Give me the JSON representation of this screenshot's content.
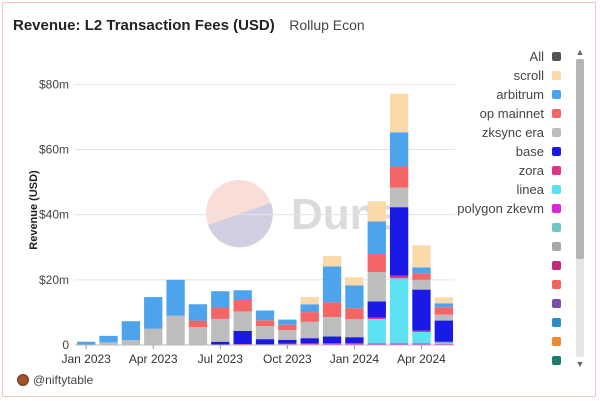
{
  "header": {
    "title": "Revenue: L2 Transaction Fees (USD)",
    "subtitle": "Rollup Econ"
  },
  "watermark": {
    "text": "Dune"
  },
  "footer": {
    "author": "@niftytable"
  },
  "legend": {
    "items": [
      {
        "label": "All",
        "color": "#555555"
      },
      {
        "label": "scroll",
        "color": "#fbd9a9"
      },
      {
        "label": "arbitrum",
        "color": "#4da3ec"
      },
      {
        "label": "op mainnet",
        "color": "#f56565"
      },
      {
        "label": "zksync era",
        "color": "#bdbdbd"
      },
      {
        "label": "base",
        "color": "#1a1ae6"
      },
      {
        "label": "zora",
        "color": "#e0338a"
      },
      {
        "label": "linea",
        "color": "#5ce1f2"
      },
      {
        "label": "polygon zkevm",
        "color": "#d926d9"
      },
      {
        "label": "",
        "color": "#6ec6c6"
      },
      {
        "label": "",
        "color": "#a8a8a8"
      },
      {
        "label": "",
        "color": "#c4287d"
      },
      {
        "label": "",
        "color": "#f0625c"
      },
      {
        "label": "",
        "color": "#7a4fa5"
      },
      {
        "label": "",
        "color": "#2a89c8"
      },
      {
        "label": "",
        "color": "#ee8a2c"
      },
      {
        "label": "",
        "color": "#1f7a6e"
      }
    ]
  },
  "chart_data": {
    "type": "bar",
    "stacked": true,
    "title": "Revenue: L2 Transaction Fees (USD)",
    "xlabel": "",
    "ylabel": "Revenue (USD)",
    "ylim": [
      0,
      89
    ],
    "y_ticks": [
      0,
      20,
      40,
      60,
      80
    ],
    "y_tick_labels": [
      "0",
      "$20m",
      "$40m",
      "$60m",
      "$80m"
    ],
    "x_tick_labels": [
      "Jan 2023",
      "Apr 2023",
      "Jul 2023",
      "Oct 2023",
      "Jan 2024",
      "Apr 2024"
    ],
    "x_tick_index": [
      0,
      3,
      6,
      9,
      12,
      15
    ],
    "categories": [
      "2023-01",
      "2023-02",
      "2023-03",
      "2023-04",
      "2023-05",
      "2023-06",
      "2023-07",
      "2023-08",
      "2023-09",
      "2023-10",
      "2023-11",
      "2023-12",
      "2024-01",
      "2024-02",
      "2024-03",
      "2024-04",
      "2024-05"
    ],
    "grid": true,
    "legend_position": "right",
    "series": [
      {
        "name": "polygon zkevm",
        "color": "#d926d9",
        "values": [
          0,
          0,
          0,
          0,
          0,
          0,
          0,
          0,
          0.2,
          0.2,
          0.2,
          0.3,
          0.3,
          0.5,
          0.5,
          0.5,
          0.3
        ]
      },
      {
        "name": "linea",
        "color": "#5ce1f2",
        "values": [
          0,
          0,
          0,
          0,
          0,
          0,
          0,
          0,
          0,
          0,
          0,
          0,
          0,
          7.5,
          20,
          3.5,
          0.5
        ]
      },
      {
        "name": "zora",
        "color": "#e0338a",
        "values": [
          0,
          0,
          0,
          0,
          0,
          0,
          0,
          0.3,
          0,
          0.2,
          0.3,
          0.3,
          0.3,
          0.4,
          0.8,
          0.4,
          0.2
        ]
      },
      {
        "name": "base",
        "color": "#1a1ae6",
        "values": [
          0,
          0,
          0,
          0,
          0,
          0,
          1,
          4,
          1.6,
          1.2,
          1.6,
          2,
          1.8,
          5,
          21,
          12.6,
          6.5
        ]
      },
      {
        "name": "zksync era",
        "color": "#bdbdbd",
        "values": [
          0,
          0.8,
          1.5,
          5,
          9,
          5.5,
          7,
          6,
          4,
          3,
          5,
          6,
          5.5,
          9,
          6,
          3,
          1.8
        ]
      },
      {
        "name": "op mainnet",
        "color": "#f56565",
        "values": [
          0,
          0,
          0,
          0,
          0,
          2,
          3.5,
          3.5,
          1.8,
          1.6,
          3,
          4.5,
          3.4,
          5.5,
          6.5,
          2,
          2.3
        ]
      },
      {
        "name": "arbitrum",
        "color": "#4da3ec",
        "values": [
          1,
          2,
          5.8,
          9.7,
          11,
          5,
          5,
          3,
          3,
          1.6,
          2.4,
          11,
          7,
          10,
          10.5,
          1.8,
          1.2
        ]
      },
      {
        "name": "scroll",
        "color": "#fbd9a9",
        "values": [
          0,
          0,
          0,
          0,
          0,
          0,
          0,
          0,
          0,
          0,
          2.2,
          3.2,
          2.5,
          6.2,
          11.8,
          6.8,
          1.8
        ]
      }
    ]
  }
}
